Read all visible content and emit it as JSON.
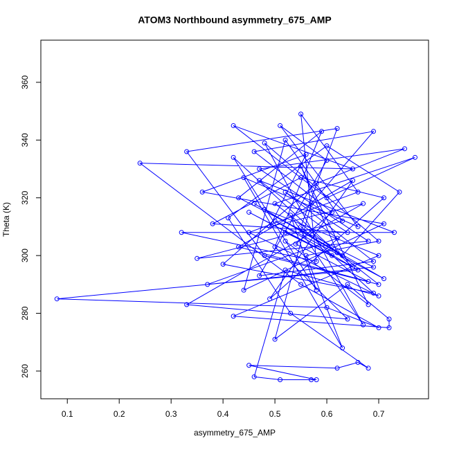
{
  "chart_data": {
    "type": "line",
    "title": "ATOM3 Northbound asymmetry_675_AMP",
    "x_label": "asymmetry_675_AMP",
    "y_label": "Theta (K)",
    "color": "#0000ff",
    "markers": true,
    "xlim": [
      0.049,
      0.796
    ],
    "ylim": [
      250.4,
      374.6
    ],
    "xticks": [
      0.1,
      0.2,
      0.3,
      0.4,
      0.5,
      0.6,
      0.7
    ],
    "yticks": [
      260,
      280,
      300,
      320,
      340,
      360
    ],
    "x": [
      0.52,
      0.61,
      0.45,
      0.66,
      0.08,
      0.6,
      0.7,
      0.55,
      0.24,
      0.65,
      0.42,
      0.6,
      0.77,
      0.5,
      0.7,
      0.48,
      0.33,
      0.62,
      0.55,
      0.69,
      0.4,
      0.58,
      0.75,
      0.47,
      0.68,
      0.35,
      0.63,
      0.52,
      0.44,
      0.71,
      0.36,
      0.56,
      0.49,
      0.67,
      0.33,
      0.64,
      0.5,
      0.59,
      0.43,
      0.69,
      0.37,
      0.62,
      0.47,
      0.73,
      0.32,
      0.58,
      0.55,
      0.66,
      0.45,
      0.7,
      0.52,
      0.46,
      0.51,
      0.57,
      0.58,
      0.45,
      0.62,
      0.66,
      0.68,
      0.53,
      0.41,
      0.6,
      0.74,
      0.63,
      0.48,
      0.7,
      0.42,
      0.72,
      0.72,
      0.64,
      0.5,
      0.57,
      0.69,
      0.46,
      0.61,
      0.54,
      0.68,
      0.43,
      0.65,
      0.49,
      0.71,
      0.55,
      0.38,
      0.64,
      0.52,
      0.69,
      0.47,
      0.6,
      0.51,
      0.66,
      0.44,
      0.63,
      0.56,
      0.7,
      0.48,
      0.67,
      0.53,
      0.58,
      0.42,
      0.65,
      0.5,
      0.71,
      0.46,
      0.62,
      0.55,
      0.68,
      0.52
    ],
    "values": [
      308,
      300,
      315,
      295,
      285,
      282,
      275,
      290,
      332,
      330,
      345,
      320,
      334,
      318,
      290,
      300,
      336,
      344,
      310,
      287,
      297,
      325,
      337,
      330,
      305,
      299,
      312,
      340,
      288,
      311,
      322,
      335,
      310,
      318,
      283,
      278,
      303,
      343,
      320,
      296,
      290,
      306,
      326,
      308,
      308,
      298,
      349,
      322,
      308,
      286,
      295,
      258,
      257,
      257,
      257,
      262,
      261,
      263,
      261,
      280,
      313,
      338,
      322,
      300,
      316,
      300,
      279,
      275,
      278,
      290,
      271,
      318,
      343,
      336,
      315,
      304,
      291,
      303,
      326,
      285,
      320,
      327,
      311,
      308,
      322,
      298,
      293,
      333,
      345,
      310,
      327,
      268,
      300,
      305,
      339,
      276,
      314,
      288,
      334,
      296,
      312,
      292,
      318,
      301,
      331,
      283,
      305
    ]
  }
}
